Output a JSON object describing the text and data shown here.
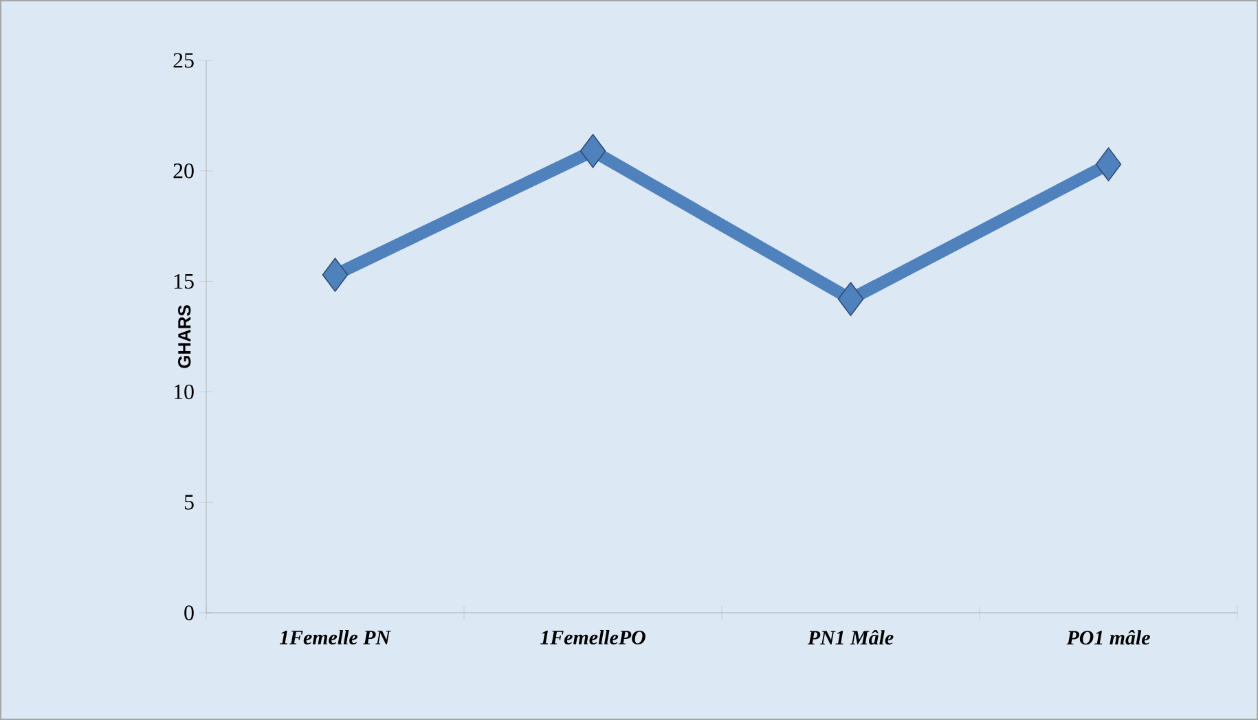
{
  "chart_data": {
    "type": "line",
    "ylabel": "GHARS",
    "categories": [
      "*1Femelle PN*",
      "*1FemellePO*",
      "*PN1 Mâle*",
      "*PO1 mâle*"
    ],
    "series": [
      {
        "color": "#4f81bd",
        "values": [
          15.3,
          20.9,
          14.2,
          20.3
        ]
      }
    ],
    "ylim": [
      0,
      25
    ],
    "yticks": [
      0,
      5,
      10,
      15,
      20,
      25
    ],
    "grid": false,
    "marker": "diamond",
    "line_style": "solid"
  }
}
